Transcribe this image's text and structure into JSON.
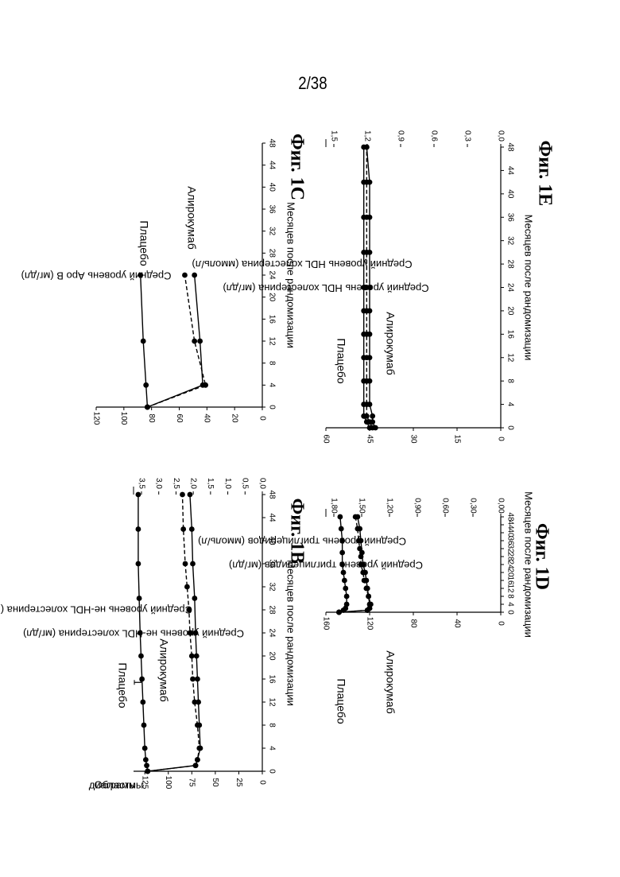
{
  "page_number": "2/38",
  "chart_data": [
    {
      "id": "1B",
      "type": "line",
      "caption": "Фиг. 1B",
      "xlabel": "Месяцев после рандомизации",
      "ylabel": "Средний уровень не-HDL холестерина (мг/дл)",
      "y2label": "Средний уровень не-HDL холестерина (ммоль/л)",
      "corner_label": "Область диаграммы",
      "x_ticks": [
        "0",
        "4",
        "8",
        "12",
        "16",
        "20",
        "24",
        "28",
        "32",
        "36",
        "40",
        "44",
        "48"
      ],
      "y_ticks": [
        "0",
        "25",
        "50",
        "75",
        "100",
        "125"
      ],
      "y2_ticks": [
        "0,0",
        "0,5",
        "1,0",
        "1,5",
        "2,0",
        "2,5",
        "3,0",
        "3,5"
      ],
      "xlim": [
        0,
        48
      ],
      "ylim": [
        0,
        137
      ],
      "annotation": "1",
      "series": [
        {
          "name": "Плацебо",
          "dash": false,
          "x": [
            0,
            1,
            2,
            4,
            8,
            12,
            16,
            20,
            24,
            30,
            36,
            42,
            48
          ],
          "y": [
            122,
            123,
            124,
            125,
            126,
            127,
            128,
            129,
            130,
            131,
            132,
            132,
            132
          ]
        },
        {
          "name": "Алирокумаб",
          "dash": true,
          "x": [
            0,
            1,
            2,
            4,
            8,
            12,
            16,
            20,
            24,
            28,
            32,
            36,
            42,
            48
          ],
          "y": [
            122,
            71,
            69,
            67,
            69,
            72,
            74,
            75,
            77,
            78,
            80,
            82,
            84,
            85
          ]
        },
        {
          "name": "",
          "dash": false,
          "x": [
            0,
            1,
            2,
            4,
            8,
            12,
            16,
            20,
            24,
            30,
            36,
            42,
            48
          ],
          "y": [
            122,
            71,
            69,
            66,
            67,
            68,
            69,
            70,
            71,
            72,
            74,
            75,
            77
          ]
        }
      ]
    },
    {
      "id": "1C",
      "type": "line",
      "caption": "Фиг. 1C",
      "xlabel": "Месяцев после рандомизации",
      "ylabel": "Средний уровень Apo B (мг/дл)",
      "x_ticks": [
        "0",
        "4",
        "8",
        "12",
        "16",
        "20",
        "24",
        "28",
        "32",
        "36",
        "40",
        "44",
        "48"
      ],
      "y_ticks": [
        "0",
        "20",
        "40",
        "60",
        "80",
        "100",
        "120"
      ],
      "xlim": [
        0,
        48
      ],
      "ylim": [
        0,
        120
      ],
      "series": [
        {
          "name": "Плацебо",
          "dash": false,
          "x": [
            0,
            4,
            12,
            24
          ],
          "y": [
            83,
            84,
            86,
            88
          ]
        },
        {
          "name": "Алирокумаб",
          "dash": true,
          "x": [
            0,
            4,
            12,
            24
          ],
          "y": [
            83,
            41,
            49,
            56
          ]
        },
        {
          "name": "",
          "dash": false,
          "x": [
            0,
            4,
            12,
            24
          ],
          "y": [
            83,
            43,
            45,
            49
          ]
        }
      ]
    },
    {
      "id": "1D",
      "type": "line",
      "caption": "Фиг. 1D",
      "xlabel": "Месяцев после рандомизации",
      "ylabel": "Средний уровень триглицеридов (мг/дл)",
      "y2label": "Средний уровень триглицеридов (ммоль/л)",
      "x_ticks": [
        "0",
        "4",
        "8",
        "12",
        "16",
        "20",
        "24",
        "28",
        "32",
        "36",
        "40",
        "44",
        "48"
      ],
      "y_ticks": [
        "0",
        "40",
        "80",
        "120",
        "160"
      ],
      "y2_ticks": [
        "0,00",
        "0,30",
        "0,60",
        "0,90",
        "1,20",
        "1,50",
        "1,80"
      ],
      "xlim": [
        0,
        48
      ],
      "ylim": [
        0,
        160
      ],
      "series": [
        {
          "name": "Плацебо",
          "dash": false,
          "x": [
            0,
            1,
            2,
            4,
            8,
            12,
            16,
            20,
            24,
            30,
            36,
            42,
            48
          ],
          "y": [
            148,
            144,
            142,
            141,
            141,
            142,
            143,
            144,
            145,
            145,
            145,
            146,
            147
          ]
        },
        {
          "name": "Алирокумаб",
          "dash": true,
          "x": [
            0,
            1,
            2,
            4,
            8,
            12,
            16,
            20,
            24,
            28,
            32,
            36,
            42,
            48
          ],
          "y": [
            148,
            122,
            120,
            119,
            121,
            123,
            125,
            126,
            128,
            128,
            129,
            130,
            131,
            133
          ]
        },
        {
          "name": "",
          "dash": false,
          "x": [
            0,
            1,
            2,
            4,
            8,
            12,
            16,
            20,
            24,
            30,
            36,
            42,
            48
          ],
          "y": [
            148,
            122,
            120,
            120,
            121,
            122,
            123,
            124,
            126,
            127,
            128,
            129,
            131
          ]
        }
      ]
    },
    {
      "id": "1E",
      "type": "line",
      "caption": "Фиг. 1E",
      "xlabel": "Месяцев после рандомизации",
      "ylabel": "Средний уровень HDL холестерина (мг/дл)",
      "y2label": "Средний уровень HDL холестерина (ммоль/л)",
      "x_ticks": [
        "0",
        "4",
        "8",
        "12",
        "16",
        "20",
        "24",
        "28",
        "32",
        "36",
        "40",
        "44",
        "48"
      ],
      "y_ticks": [
        "0",
        "15",
        "30",
        "45",
        "60"
      ],
      "y2_ticks": [
        "0,0",
        "0,3",
        "0,6",
        "0,9",
        "1,2",
        "1,5"
      ],
      "xlim": [
        0,
        48
      ],
      "ylim": [
        0,
        60
      ],
      "series": [
        {
          "name": "Плацебо",
          "dash": false,
          "x": [
            0,
            1,
            2,
            4,
            8,
            12,
            16,
            20,
            24,
            30,
            36,
            42,
            48
          ],
          "y": [
            45,
            46,
            47,
            47,
            47,
            47,
            47,
            47,
            47,
            47,
            47,
            47,
            47
          ]
        },
        {
          "name": "Алирокумаб",
          "dash": true,
          "x": [
            0,
            1,
            2,
            4,
            8,
            12,
            16,
            20,
            24,
            30,
            36,
            42,
            48
          ],
          "y": [
            44,
            45,
            46,
            46,
            46,
            46,
            46,
            46,
            46,
            46,
            46,
            46,
            46
          ]
        },
        {
          "name": "",
          "dash": false,
          "x": [
            0,
            1,
            2,
            4,
            8,
            12,
            16,
            20,
            24,
            30,
            36,
            42,
            48
          ],
          "y": [
            43,
            44,
            44,
            45,
            45,
            45,
            45,
            45,
            45,
            45,
            45,
            45,
            46
          ]
        }
      ]
    }
  ]
}
